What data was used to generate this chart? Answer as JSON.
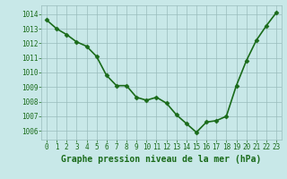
{
  "x": [
    0,
    1,
    2,
    3,
    4,
    5,
    6,
    7,
    8,
    9,
    10,
    11,
    12,
    13,
    14,
    15,
    16,
    17,
    18,
    19,
    20,
    21,
    22,
    23
  ],
  "y": [
    1013.6,
    1013.0,
    1012.6,
    1012.1,
    1011.8,
    1011.1,
    1009.8,
    1009.1,
    1009.1,
    1008.3,
    1008.1,
    1008.3,
    1007.9,
    1007.1,
    1006.5,
    1005.9,
    1006.6,
    1006.7,
    1007.0,
    1009.1,
    1010.8,
    1012.2,
    1013.2,
    1014.1
  ],
  "line_color": "#1a6b1a",
  "marker": "D",
  "marker_size": 2.5,
  "bg_color": "#c8e8e8",
  "grid_color": "#9abcbc",
  "title": "Graphe pression niveau de la mer (hPa)",
  "title_color": "#1a6b1a",
  "ylim": [
    1005.4,
    1014.6
  ],
  "xlim": [
    -0.5,
    23.5
  ],
  "yticks": [
    1006,
    1007,
    1008,
    1009,
    1010,
    1011,
    1012,
    1013,
    1014
  ],
  "xticks": [
    0,
    1,
    2,
    3,
    4,
    5,
    6,
    7,
    8,
    9,
    10,
    11,
    12,
    13,
    14,
    15,
    16,
    17,
    18,
    19,
    20,
    21,
    22,
    23
  ],
  "tick_fontsize": 5.5,
  "title_fontsize": 7.0,
  "linewidth": 1.2
}
